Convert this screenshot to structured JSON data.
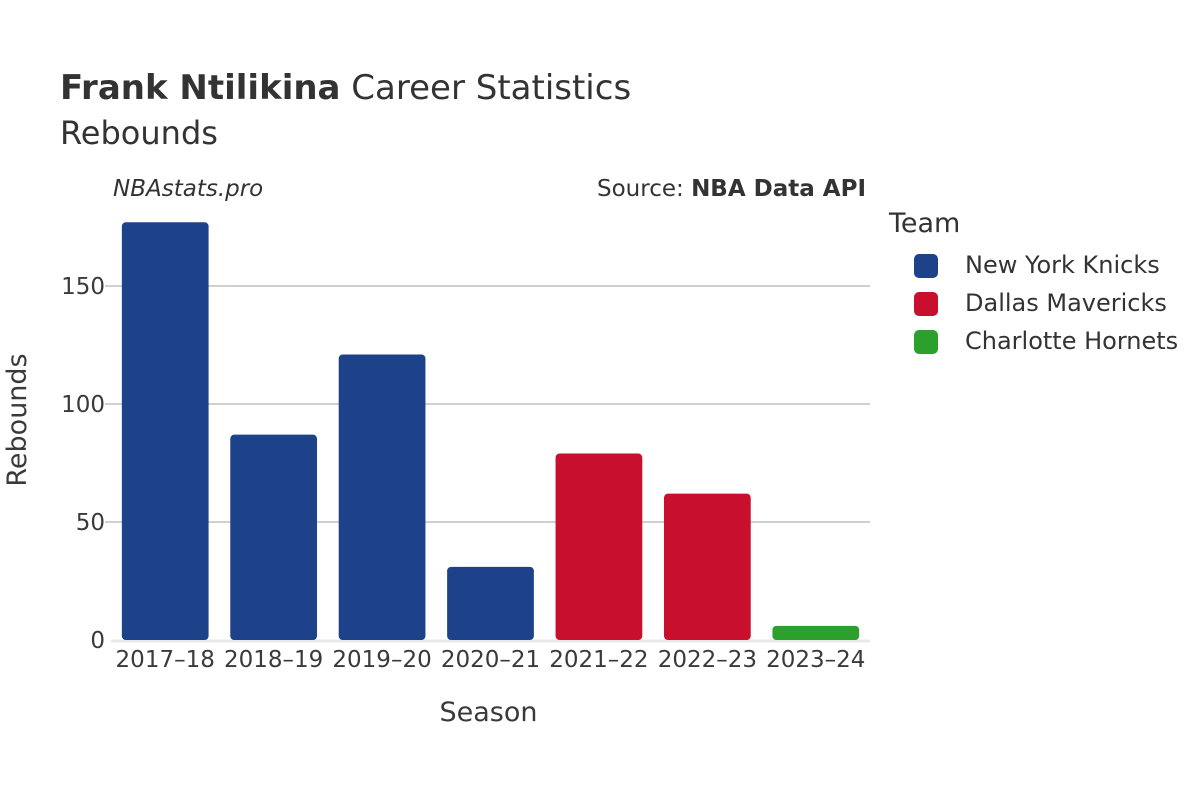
{
  "header": {
    "title_bold": "Frank Ntilikina",
    "title_rest": " Career Statistics",
    "subtitle": "Rebounds",
    "watermark": "NBAstats.pro",
    "source_prefix": "Source: ",
    "source_name": "NBA Data API"
  },
  "legend": {
    "title": "Team",
    "items": [
      {
        "label": "New York Knicks",
        "color": "#1d428a"
      },
      {
        "label": "Dallas Mavericks",
        "color": "#c8102e"
      },
      {
        "label": "Charlotte Hornets",
        "color": "#2ca02c"
      }
    ]
  },
  "chart_data": {
    "type": "bar",
    "xlabel": "Season",
    "ylabel": "Rebounds",
    "ylim": [
      0,
      180
    ],
    "yticks": [
      0,
      50,
      100,
      150
    ],
    "grid": true,
    "legend_position": "right",
    "categories": [
      "2017–18",
      "2018–19",
      "2019–20",
      "2020–21",
      "2021–22",
      "2022–23",
      "2023–24"
    ],
    "values": [
      177,
      87,
      121,
      31,
      79,
      62,
      6
    ],
    "teams": [
      "New York Knicks",
      "New York Knicks",
      "New York Knicks",
      "New York Knicks",
      "Dallas Mavericks",
      "Dallas Mavericks",
      "Charlotte Hornets"
    ]
  }
}
